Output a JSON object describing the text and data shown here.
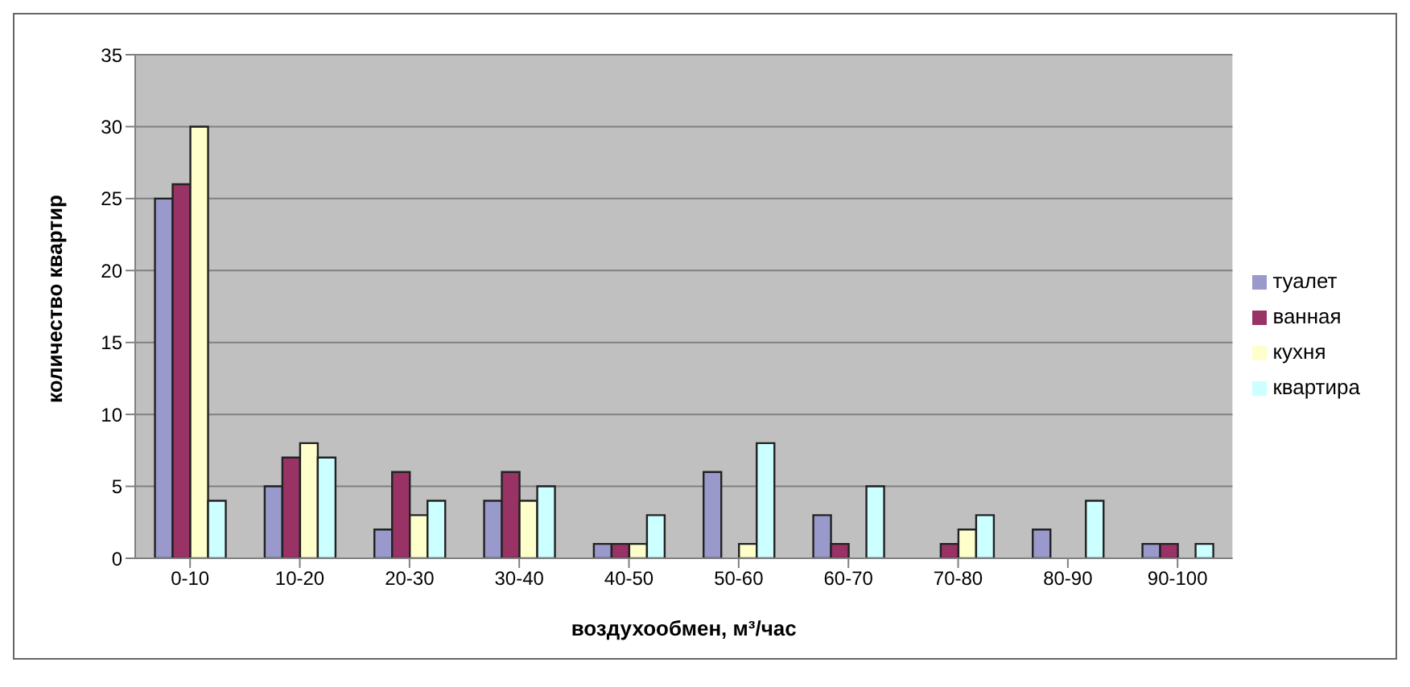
{
  "chart_data": {
    "type": "bar",
    "xlabel": "воздухообмен, м³/час",
    "ylabel": "количество квартир",
    "categories": [
      "0-10",
      "10-20",
      "20-30",
      "30-40",
      "40-50",
      "50-60",
      "60-70",
      "70-80",
      "80-90",
      "90-100"
    ],
    "series": [
      {
        "name": "туалет",
        "color": "#9999cc",
        "values": [
          25,
          5,
          2,
          4,
          1,
          6,
          3,
          0,
          2,
          1
        ]
      },
      {
        "name": "ванная",
        "color": "#993366",
        "values": [
          26,
          7,
          6,
          6,
          1,
          0,
          1,
          1,
          0,
          1
        ]
      },
      {
        "name": "кухня",
        "color": "#ffffcc",
        "values": [
          30,
          8,
          3,
          4,
          1,
          1,
          0,
          2,
          0,
          0
        ]
      },
      {
        "name": "квартира",
        "color": "#ccffff",
        "values": [
          4,
          7,
          4,
          5,
          3,
          8,
          5,
          3,
          4,
          1
        ]
      }
    ],
    "ylim": [
      0,
      35
    ],
    "yticks": [
      0,
      5,
      10,
      15,
      20,
      25,
      30,
      35
    ],
    "grid": "y",
    "legend": "right"
  }
}
